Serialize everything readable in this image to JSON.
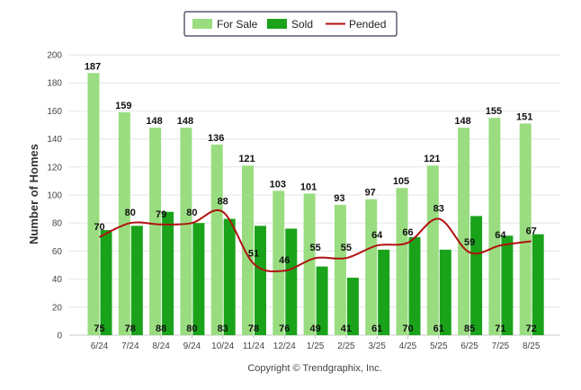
{
  "chart_data": {
    "type": "bar",
    "categories": [
      "6/24",
      "7/24",
      "8/24",
      "9/24",
      "10/24",
      "11/24",
      "12/24",
      "1/25",
      "2/25",
      "3/25",
      "4/25",
      "5/25",
      "6/25",
      "7/25",
      "8/25"
    ],
    "series": [
      {
        "name": "For Sale",
        "kind": "bar",
        "color": "#99dd80",
        "values": [
          187,
          159,
          148,
          148,
          136,
          121,
          103,
          101,
          93,
          97,
          105,
          121,
          148,
          155,
          151
        ]
      },
      {
        "name": "Sold",
        "kind": "bar",
        "color": "#1aa31a",
        "values": [
          75,
          78,
          88,
          80,
          83,
          78,
          76,
          49,
          41,
          61,
          70,
          61,
          85,
          71,
          72
        ]
      },
      {
        "name": "Pended",
        "kind": "line",
        "color": "#b01010",
        "values": [
          70,
          80,
          79,
          80,
          88,
          51,
          46,
          55,
          55,
          64,
          66,
          83,
          59,
          64,
          67
        ]
      }
    ],
    "title": "",
    "xlabel": "",
    "ylabel": "Number of Homes",
    "ylim": [
      0,
      200
    ],
    "yticks": [
      0,
      20,
      40,
      60,
      80,
      100,
      120,
      140,
      160,
      180,
      200
    ],
    "grid": true,
    "legend": "top-center"
  },
  "footer": {
    "copyright": "Copyright © Trendgraphix, Inc."
  }
}
